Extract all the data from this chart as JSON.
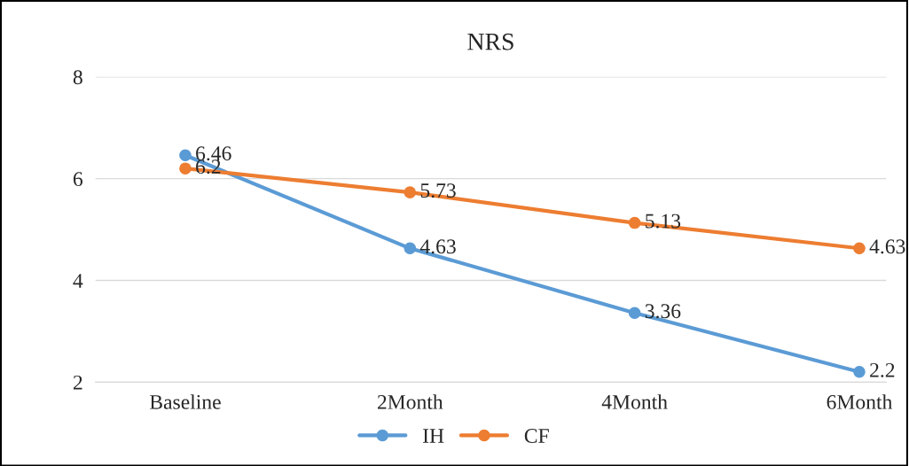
{
  "chart_data": {
    "type": "line",
    "title": "NRS",
    "categories": [
      "Baseline",
      "2Month",
      "4Month",
      "6Month"
    ],
    "series": [
      {
        "name": "IH",
        "color": "#5b9bd5",
        "values": [
          6.46,
          4.63,
          3.36,
          2.2
        ]
      },
      {
        "name": "CF",
        "color": "#ed7d31",
        "values": [
          6.2,
          5.73,
          5.13,
          4.63
        ]
      }
    ],
    "ylim": [
      2,
      8
    ],
    "yticks": [
      2,
      4,
      6,
      8
    ],
    "grid": "y",
    "legend": "bottom",
    "marker": "circle",
    "line_style": "solid",
    "data_labels": true
  }
}
